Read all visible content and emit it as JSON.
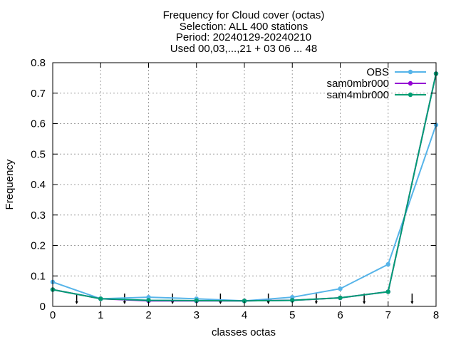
{
  "chart_data": {
    "type": "line",
    "title_lines": [
      "Frequency  for Cloud cover (octas)",
      "Selection: ALL    400 stations",
      "Period: 20240129-20240210",
      "Used 00,03,...,21 + 03 06 ... 48"
    ],
    "xlabel": "classes octas",
    "ylabel": "Frequency",
    "xlim": [
      0,
      8
    ],
    "ylim": [
      0,
      0.8
    ],
    "xticks": [
      "0",
      "1",
      "2",
      "3",
      "4",
      "5",
      "6",
      "7",
      "8"
    ],
    "yticks": [
      "0",
      "0.1",
      "0.2",
      "0.3",
      "0.4",
      "0.5",
      "0.6",
      "0.7",
      "0.8"
    ],
    "grid": true,
    "legend_position": "top-right",
    "x": [
      0,
      1,
      2,
      3,
      4,
      5,
      6,
      7,
      8
    ],
    "series": [
      {
        "name": "OBS",
        "color": "#56b4e9",
        "values": [
          0.08,
          0.025,
          0.03,
          0.025,
          0.018,
          0.03,
          0.058,
          0.138,
          0.596
        ]
      },
      {
        "name": "sam0mbr000",
        "color": "#9400d3",
        "values": [
          0.055,
          0.025,
          0.018,
          0.018,
          0.018,
          0.02,
          0.028,
          0.048,
          0.764
        ]
      },
      {
        "name": "sam4mbr000",
        "color": "#009e73",
        "values": [
          0.055,
          0.025,
          0.02,
          0.019,
          0.018,
          0.02,
          0.028,
          0.048,
          0.764
        ]
      }
    ],
    "class_boundaries": [
      0.5,
      1.5,
      2.5,
      3.5,
      4.5,
      5.5,
      6.5,
      7.5
    ]
  }
}
